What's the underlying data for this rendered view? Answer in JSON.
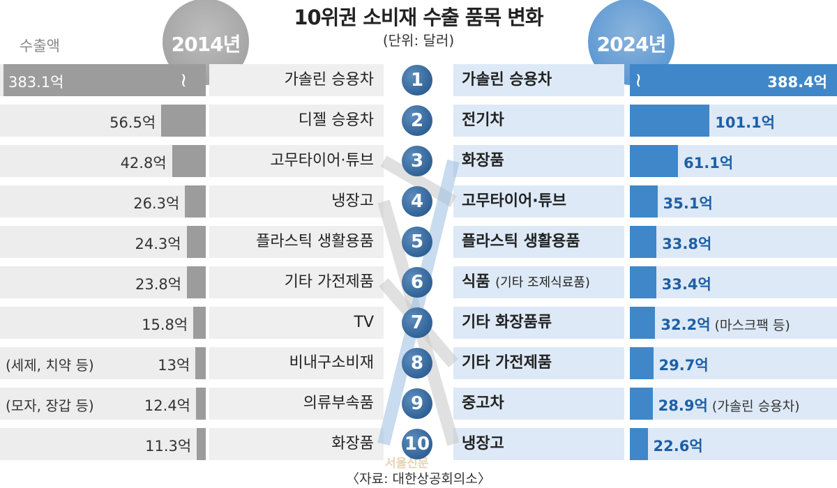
{
  "title": "10위권 소비재 수출 품목 변화",
  "unit": "(단위: 달러)",
  "metric_label": "수출액",
  "source": "〈자료: 대한상공회의소〉",
  "watermark": "서울신문",
  "colors": {
    "left_bar": "#9c9c9c",
    "right_bar": "#3f87c8",
    "rank_circle": "#1d4f86"
  },
  "chart_data": {
    "type": "bar",
    "unit": "억 달러",
    "years": [
      "2014년",
      "2024년"
    ],
    "ranks": [
      "1",
      "2",
      "3",
      "4",
      "5",
      "6",
      "7",
      "8",
      "9",
      "10"
    ],
    "series": [
      {
        "name": "2014년",
        "items": [
          {
            "name": "가솔린 승용차",
            "value": 383.1,
            "label": "383.1억",
            "note": "",
            "broken": true
          },
          {
            "name": "디젤 승용차",
            "value": 56.5,
            "label": "56.5억",
            "note": ""
          },
          {
            "name": "고무타이어·튜브",
            "value": 42.8,
            "label": "42.8억",
            "note": ""
          },
          {
            "name": "냉장고",
            "value": 26.3,
            "label": "26.3억",
            "note": ""
          },
          {
            "name": "플라스틱 생활용품",
            "value": 24.3,
            "label": "24.3억",
            "note": ""
          },
          {
            "name": "기타 가전제품",
            "value": 23.8,
            "label": "23.8억",
            "note": ""
          },
          {
            "name": "TV",
            "value": 15.8,
            "label": "15.8억",
            "note": ""
          },
          {
            "name": "비내구소비재",
            "value": 13,
            "label": "13억",
            "note": "(세제, 치약 등)"
          },
          {
            "name": "의류부속품",
            "value": 12.4,
            "label": "12.4억",
            "note": "(모자, 장갑 등)"
          },
          {
            "name": "화장품",
            "value": 11.3,
            "label": "11.3억",
            "note": ""
          }
        ]
      },
      {
        "name": "2024년",
        "items": [
          {
            "name": "가솔린 승용차",
            "sub": "",
            "value": 388.4,
            "label": "388.4억",
            "note": "",
            "broken": true
          },
          {
            "name": "전기차",
            "sub": "",
            "value": 101.1,
            "label": "101.1억",
            "note": ""
          },
          {
            "name": "화장품",
            "sub": "",
            "value": 61.1,
            "label": "61.1억",
            "note": ""
          },
          {
            "name": "고무타이어·튜브",
            "sub": "",
            "value": 35.1,
            "label": "35.1억",
            "note": ""
          },
          {
            "name": "플라스틱 생활용품",
            "sub": "",
            "value": 33.8,
            "label": "33.8억",
            "note": ""
          },
          {
            "name": "식품",
            "sub": "(기타 조제식료품)",
            "value": 33.4,
            "label": "33.4억",
            "note": ""
          },
          {
            "name": "기타 화장품류",
            "sub": "",
            "value": 32.2,
            "label": "32.2억",
            "note": "(마스크팩 등)"
          },
          {
            "name": "기타 가전제품",
            "sub": "",
            "value": 29.7,
            "label": "29.7억",
            "note": ""
          },
          {
            "name": "중고차",
            "sub": "",
            "value": 28.9,
            "label": "28.9억",
            "note": "(가솔린 승용차)"
          },
          {
            "name": "냉장고",
            "sub": "",
            "value": 22.6,
            "label": "22.6억",
            "note": ""
          }
        ]
      }
    ]
  }
}
